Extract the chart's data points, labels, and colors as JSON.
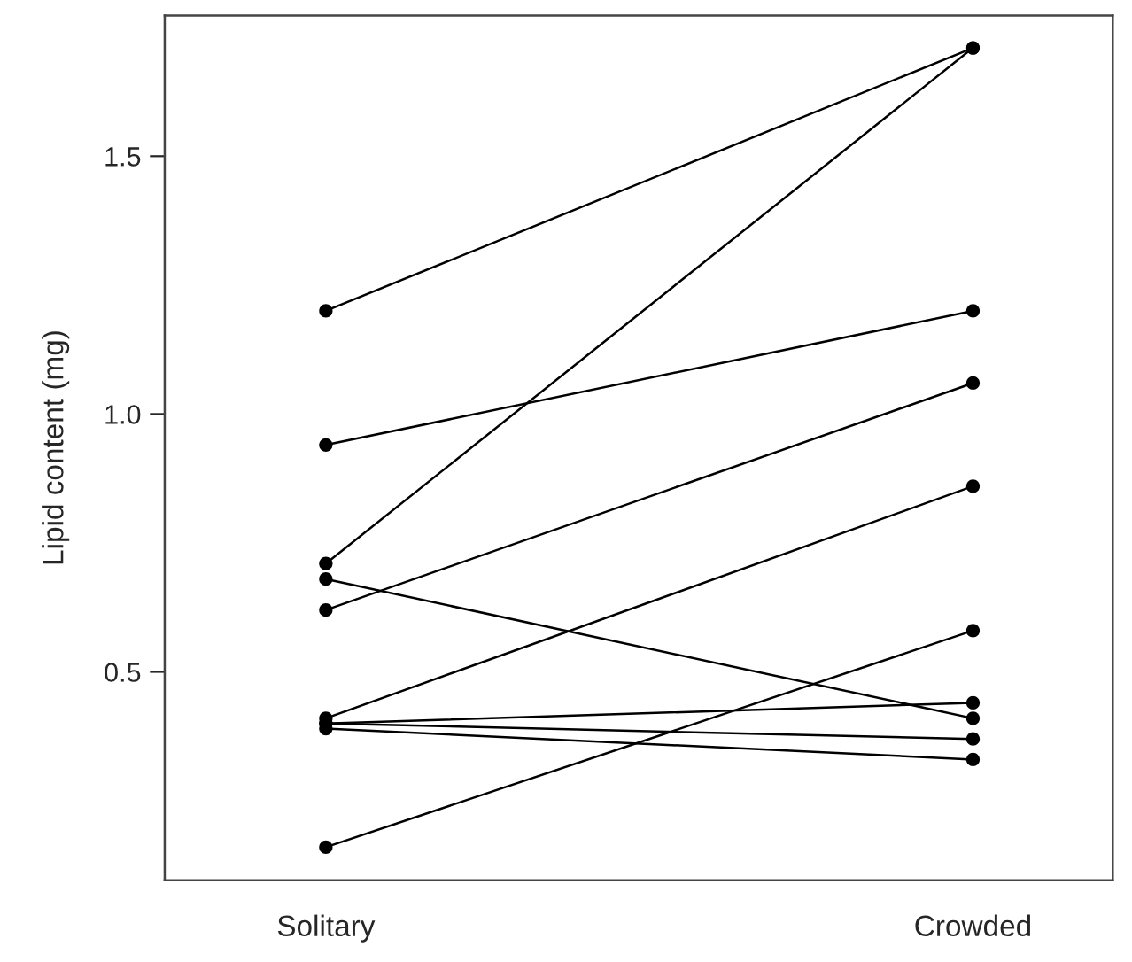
{
  "chart_data": {
    "type": "line",
    "ylabel": "Lipid content (mg)",
    "categories": [
      "Solitary",
      "Crowded"
    ],
    "series": [
      {
        "color": "#000000",
        "values": [
          1.2,
          1.71
        ]
      },
      {
        "color": "#000000",
        "values": [
          0.94,
          1.2
        ]
      },
      {
        "color": "#000000",
        "values": [
          0.71,
          1.71
        ]
      },
      {
        "color": "#000000",
        "values": [
          0.68,
          0.41
        ]
      },
      {
        "color": "#000000",
        "values": [
          0.62,
          1.06
        ]
      },
      {
        "color": "#000000",
        "values": [
          0.41,
          0.86
        ]
      },
      {
        "color": "#000000",
        "values": [
          0.4,
          0.44
        ]
      },
      {
        "color": "#000000",
        "values": [
          0.4,
          0.37
        ]
      },
      {
        "color": "#000000",
        "values": [
          0.39,
          0.33
        ]
      },
      {
        "color": "#000000",
        "values": [
          0.16,
          0.58
        ]
      }
    ],
    "ylim": [
      0.096,
      1.773
    ],
    "yticks": [
      {
        "value": 0.5,
        "label": "0.5"
      },
      {
        "value": 1.0,
        "label": "1.0"
      },
      {
        "value": 1.5,
        "label": "1.5"
      }
    ],
    "marker": "circle",
    "line_style": "solid",
    "grid": false,
    "legend": false
  }
}
